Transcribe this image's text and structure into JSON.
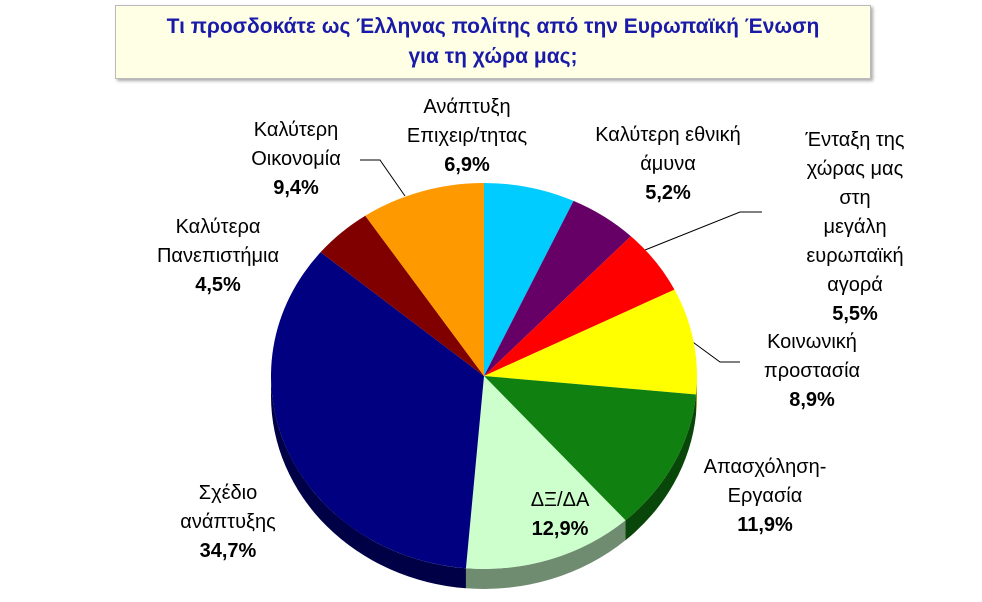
{
  "chart_data": {
    "type": "pie",
    "title": "Τι προσδοκάτε ως Έλληνας πολίτης από την Ευρωπαϊκή Ένωση\nγια τη χώρα μας;",
    "categories": [
      "Ανάπτυξη\nΕπιχειρ/τητας",
      "Καλύτερη εθνική\nάμυνα",
      "Ένταξη της\nχώρας μας στη\nμεγάλη\nευρωπαϊκή\nαγορά",
      "Κοινωνική\nπροστασία",
      "Απασχόληση-\nΕργασία",
      "ΔΞ/ΔΑ",
      "Σχέδιο\nανάπτυξης",
      "Καλύτερα\nΠανεπιστήμια",
      "Καλύτερη\nΟικονομία"
    ],
    "values": [
      6.9,
      5.2,
      5.5,
      8.9,
      11.9,
      12.9,
      34.7,
      4.5,
      9.4
    ],
    "value_labels": [
      "6,9%",
      "5,2%",
      "5,5%",
      "8,9%",
      "11,9%",
      "12,9%",
      "34,7%",
      "4,5%",
      "9,4%"
    ],
    "colors": [
      "#00ccff",
      "#660066",
      "#ff0000",
      "#ffff00",
      "#108010",
      "#ccffcc",
      "#000080",
      "#800000",
      "#ff9900"
    ]
  }
}
